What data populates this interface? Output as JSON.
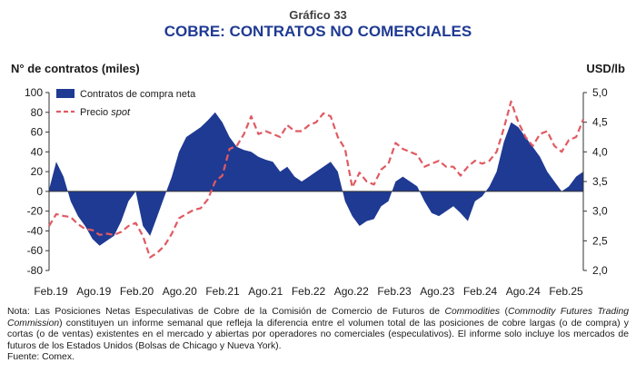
{
  "header": {
    "overline": "Gráfico 33",
    "title": "COBRE: CONTRATOS NO COMERCIALES"
  },
  "chart_data": {
    "type": "area",
    "title": "COBRE: CONTRATOS NO COMERCIALES",
    "ylabel_left": "N° de contratos (miles)",
    "ylabel_right": "USD/lb",
    "left_axis": {
      "min": -80,
      "max": 100,
      "ticks": [
        "100",
        "80",
        "60",
        "40",
        "20",
        "0",
        "-20",
        "-40",
        "-60",
        "-80"
      ]
    },
    "right_axis": {
      "min": 2.0,
      "max": 5.0,
      "ticks": [
        "5,0",
        "4,5",
        "4,0",
        "3,5",
        "3,0",
        "2,5",
        "2,0"
      ]
    },
    "x_ticks": [
      "Feb.19",
      "Ago.19",
      "Feb.20",
      "Ago.20",
      "Feb.21",
      "Ago.21",
      "Feb.22",
      "Ago.22",
      "Feb.23",
      "Ago.23",
      "Feb.24",
      "Ago.24",
      "Feb.25"
    ],
    "x_start": "2019-01",
    "x_end": "2025-03",
    "legend": {
      "placement": "top-left"
    },
    "series": [
      {
        "name": "Contratos de compra neta",
        "axis": "left",
        "style": "area",
        "color": "#1f3a93",
        "points": [
          [
            "2019-01",
            2
          ],
          [
            "2019-02",
            30
          ],
          [
            "2019-03",
            15
          ],
          [
            "2019-04",
            -10
          ],
          [
            "2019-05",
            -25
          ],
          [
            "2019-06",
            -35
          ],
          [
            "2019-07",
            -48
          ],
          [
            "2019-08",
            -55
          ],
          [
            "2019-09",
            -50
          ],
          [
            "2019-10",
            -45
          ],
          [
            "2019-11",
            -30
          ],
          [
            "2019-12",
            -10
          ],
          [
            "2020-01",
            0
          ],
          [
            "2020-02",
            -35
          ],
          [
            "2020-03",
            -45
          ],
          [
            "2020-04",
            -25
          ],
          [
            "2020-05",
            -5
          ],
          [
            "2020-06",
            15
          ],
          [
            "2020-07",
            40
          ],
          [
            "2020-08",
            55
          ],
          [
            "2020-09",
            60
          ],
          [
            "2020-10",
            65
          ],
          [
            "2020-11",
            72
          ],
          [
            "2020-12",
            80
          ],
          [
            "2021-01",
            70
          ],
          [
            "2021-02",
            55
          ],
          [
            "2021-03",
            45
          ],
          [
            "2021-04",
            42
          ],
          [
            "2021-05",
            40
          ],
          [
            "2021-06",
            35
          ],
          [
            "2021-07",
            32
          ],
          [
            "2021-08",
            30
          ],
          [
            "2021-09",
            20
          ],
          [
            "2021-10",
            25
          ],
          [
            "2021-11",
            15
          ],
          [
            "2021-12",
            10
          ],
          [
            "2022-01",
            15
          ],
          [
            "2022-02",
            20
          ],
          [
            "2022-03",
            25
          ],
          [
            "2022-04",
            30
          ],
          [
            "2022-05",
            20
          ],
          [
            "2022-06",
            -10
          ],
          [
            "2022-07",
            -25
          ],
          [
            "2022-08",
            -35
          ],
          [
            "2022-09",
            -30
          ],
          [
            "2022-10",
            -28
          ],
          [
            "2022-11",
            -15
          ],
          [
            "2022-12",
            -10
          ],
          [
            "2023-01",
            10
          ],
          [
            "2023-02",
            15
          ],
          [
            "2023-03",
            10
          ],
          [
            "2023-04",
            5
          ],
          [
            "2023-05",
            -10
          ],
          [
            "2023-06",
            -22
          ],
          [
            "2023-07",
            -25
          ],
          [
            "2023-08",
            -20
          ],
          [
            "2023-09",
            -15
          ],
          [
            "2023-10",
            -22
          ],
          [
            "2023-11",
            -30
          ],
          [
            "2023-12",
            -10
          ],
          [
            "2024-01",
            -5
          ],
          [
            "2024-02",
            5
          ],
          [
            "2024-03",
            20
          ],
          [
            "2024-04",
            50
          ],
          [
            "2024-05",
            70
          ],
          [
            "2024-06",
            65
          ],
          [
            "2024-07",
            55
          ],
          [
            "2024-08",
            45
          ],
          [
            "2024-09",
            35
          ],
          [
            "2024-10",
            20
          ],
          [
            "2024-11",
            10
          ],
          [
            "2024-12",
            0
          ],
          [
            "2025-01",
            5
          ],
          [
            "2025-02",
            15
          ],
          [
            "2025-03",
            20
          ]
        ]
      },
      {
        "name": "Precio spot",
        "axis": "right",
        "style": "dashed-line",
        "color": "#e05a62",
        "points": [
          [
            "2019-01",
            2.75
          ],
          [
            "2019-02",
            2.95
          ],
          [
            "2019-03",
            2.92
          ],
          [
            "2019-04",
            2.9
          ],
          [
            "2019-05",
            2.78
          ],
          [
            "2019-06",
            2.7
          ],
          [
            "2019-07",
            2.68
          ],
          [
            "2019-08",
            2.6
          ],
          [
            "2019-09",
            2.62
          ],
          [
            "2019-10",
            2.6
          ],
          [
            "2019-11",
            2.65
          ],
          [
            "2019-12",
            2.75
          ],
          [
            "2020-01",
            2.8
          ],
          [
            "2020-02",
            2.58
          ],
          [
            "2020-03",
            2.22
          ],
          [
            "2020-04",
            2.3
          ],
          [
            "2020-05",
            2.42
          ],
          [
            "2020-06",
            2.62
          ],
          [
            "2020-07",
            2.88
          ],
          [
            "2020-08",
            2.95
          ],
          [
            "2020-09",
            3.02
          ],
          [
            "2020-10",
            3.05
          ],
          [
            "2020-11",
            3.2
          ],
          [
            "2020-12",
            3.5
          ],
          [
            "2021-01",
            3.6
          ],
          [
            "2021-02",
            4.05
          ],
          [
            "2021-03",
            4.1
          ],
          [
            "2021-04",
            4.3
          ],
          [
            "2021-05",
            4.6
          ],
          [
            "2021-06",
            4.3
          ],
          [
            "2021-07",
            4.35
          ],
          [
            "2021-08",
            4.3
          ],
          [
            "2021-09",
            4.25
          ],
          [
            "2021-10",
            4.45
          ],
          [
            "2021-11",
            4.35
          ],
          [
            "2021-12",
            4.35
          ],
          [
            "2022-01",
            4.45
          ],
          [
            "2022-02",
            4.5
          ],
          [
            "2022-03",
            4.65
          ],
          [
            "2022-04",
            4.6
          ],
          [
            "2022-05",
            4.25
          ],
          [
            "2022-06",
            4.05
          ],
          [
            "2022-07",
            3.4
          ],
          [
            "2022-08",
            3.65
          ],
          [
            "2022-09",
            3.5
          ],
          [
            "2022-10",
            3.45
          ],
          [
            "2022-11",
            3.7
          ],
          [
            "2022-12",
            3.8
          ],
          [
            "2023-01",
            4.15
          ],
          [
            "2023-02",
            4.05
          ],
          [
            "2023-03",
            4.0
          ],
          [
            "2023-04",
            3.95
          ],
          [
            "2023-05",
            3.75
          ],
          [
            "2023-06",
            3.8
          ],
          [
            "2023-07",
            3.85
          ],
          [
            "2023-08",
            3.75
          ],
          [
            "2023-09",
            3.75
          ],
          [
            "2023-10",
            3.6
          ],
          [
            "2023-11",
            3.75
          ],
          [
            "2023-12",
            3.85
          ],
          [
            "2024-01",
            3.8
          ],
          [
            "2024-02",
            3.85
          ],
          [
            "2024-03",
            4.0
          ],
          [
            "2024-04",
            4.4
          ],
          [
            "2024-05",
            4.85
          ],
          [
            "2024-06",
            4.5
          ],
          [
            "2024-07",
            4.25
          ],
          [
            "2024-08",
            4.1
          ],
          [
            "2024-09",
            4.3
          ],
          [
            "2024-10",
            4.35
          ],
          [
            "2024-11",
            4.1
          ],
          [
            "2024-12",
            4.0
          ],
          [
            "2025-01",
            4.2
          ],
          [
            "2025-02",
            4.25
          ],
          [
            "2025-03",
            4.55
          ]
        ]
      }
    ]
  },
  "notes": {
    "nota": "Nota: Las Posiciones Netas Especulativas de Cobre de la Comisión de Comercio de Futuros de Commodities (Commodity Futures Trading Commission) constituyen un informe semanal que refleja la diferencia entre el volumen total de las posiciones de cobre largas (o de compra) y cortas (o de ventas) existentes en el mercado y abiertas por operadores no comerciales (especulativos). El informe solo incluye los mercados de futuros de los Estados Unidos (Bolsas de Chicago y Nueva York).",
    "fuente": "Fuente: Comex."
  }
}
